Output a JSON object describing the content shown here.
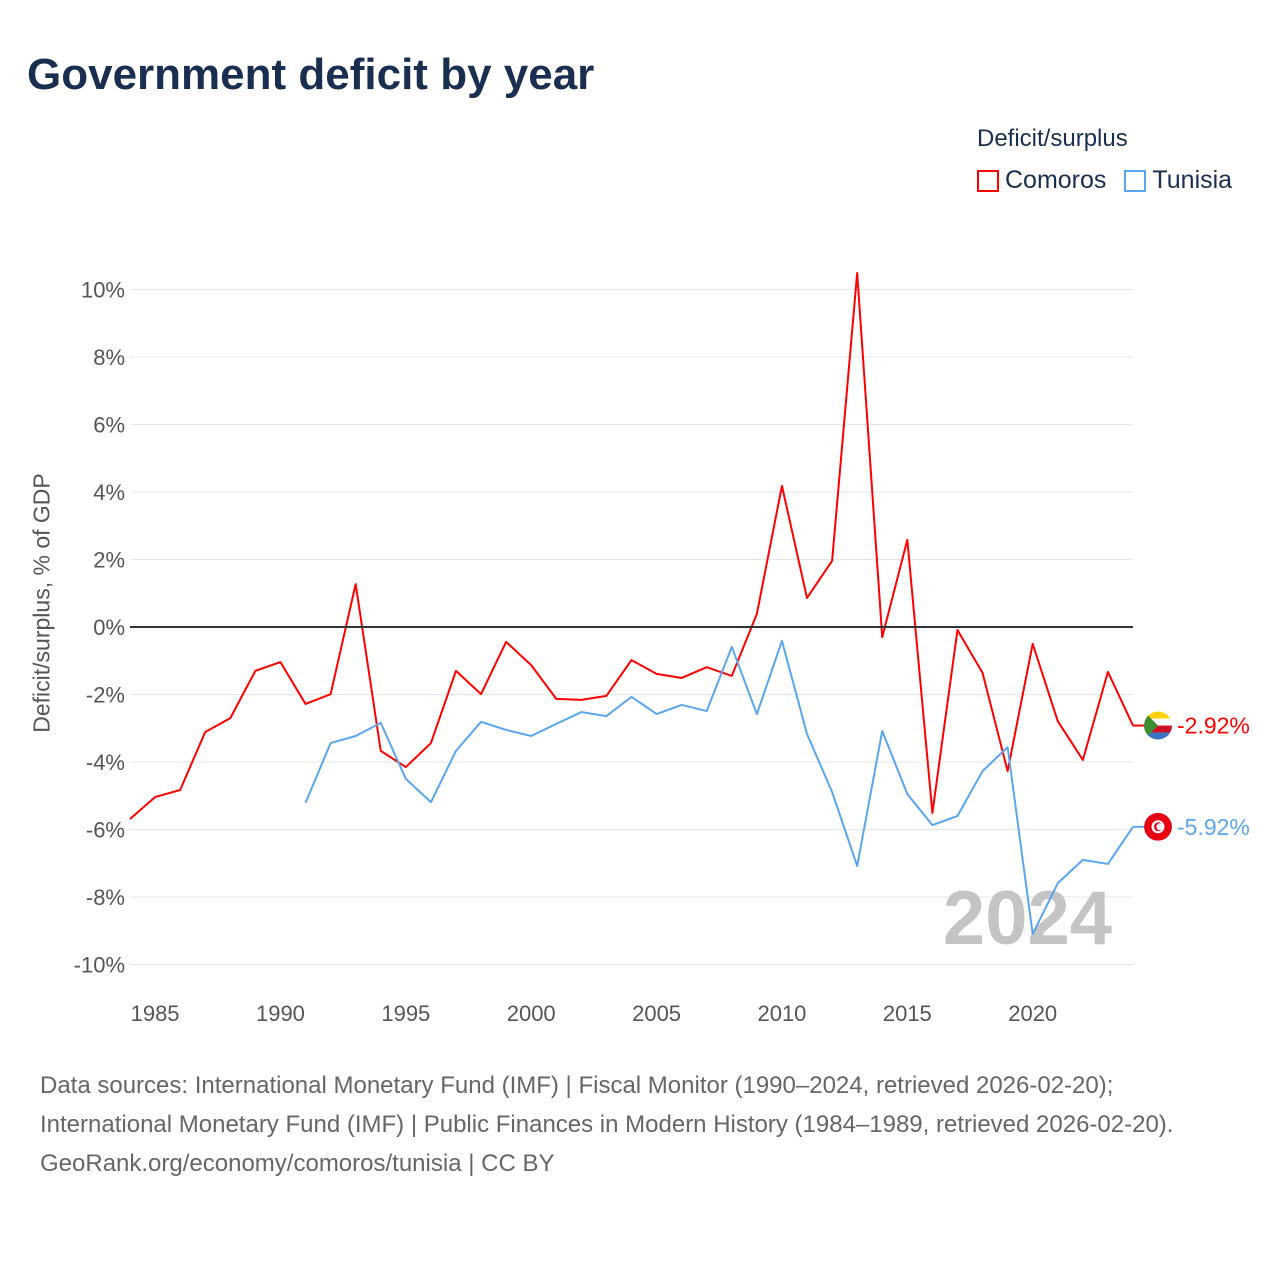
{
  "title": "Government deficit by year",
  "legend": {
    "title": "Deficit/surplus",
    "items": [
      {
        "label": "Comoros",
        "color": "#ff0000"
      },
      {
        "label": "Tunisia",
        "color": "#5aa6ee"
      }
    ]
  },
  "year_watermark": "2024",
  "sources": {
    "line1": "Data sources: International Monetary Fund (IMF) | Fiscal Monitor (1990–2024, retrieved 2026-02-20); International Monetary Fund (IMF) | Public Finances in Modern History (1984–1989, retrieved 2026-02-20).",
    "line2": "GeoRank.org/economy/comoros/tunisia | CC BY"
  },
  "chart_data": {
    "type": "line",
    "title": "Government deficit by year",
    "xlabel": "",
    "ylabel": "Deficit/surplus, % of GDP",
    "xlim": [
      1984,
      2024
    ],
    "ylim": [
      -10.5,
      10.5
    ],
    "x_ticks": [
      1985,
      1990,
      1995,
      2000,
      2005,
      2010,
      2015,
      2020
    ],
    "y_ticks": [
      {
        "v": 10,
        "label": "10%"
      },
      {
        "v": 8,
        "label": "8%"
      },
      {
        "v": 6,
        "label": "6%"
      },
      {
        "v": 4,
        "label": "4%"
      },
      {
        "v": 2,
        "label": "2%"
      },
      {
        "v": 0,
        "label": "0%"
      },
      {
        "v": -2,
        "label": "-2%"
      },
      {
        "v": -4,
        "label": "-4%"
      },
      {
        "v": -6,
        "label": "-6%"
      },
      {
        "v": -8,
        "label": "-8%"
      },
      {
        "v": -10,
        "label": "-10%"
      }
    ],
    "grid": true,
    "legend_position": "top-right",
    "series": [
      {
        "name": "Comoros",
        "color": "#ff0000",
        "end_label": "-2.92%",
        "start_year": 1984,
        "values": [
          -5.69,
          -5.04,
          -4.83,
          -3.11,
          -2.7,
          -1.3,
          -1.04,
          -2.28,
          -1.99,
          1.27,
          -3.67,
          -4.15,
          -3.44,
          -1.3,
          -1.99,
          -0.44,
          -1.13,
          -2.13,
          -2.16,
          -2.04,
          -0.98,
          -1.39,
          -1.51,
          -1.19,
          -1.45,
          0.39,
          4.18,
          0.86,
          1.96,
          10.49,
          -0.3,
          2.58,
          -5.51,
          -0.09,
          -1.36,
          -4.27,
          -0.5,
          -2.79,
          -3.94,
          -1.33,
          -2.92
        ]
      },
      {
        "name": "Tunisia",
        "color": "#5aa6ee",
        "end_label": "-5.92%",
        "start_year": 1991,
        "values": [
          -5.21,
          -3.44,
          -3.23,
          -2.84,
          -4.5,
          -5.19,
          -3.67,
          -2.81,
          -3.05,
          -3.23,
          -2.87,
          -2.52,
          -2.64,
          -2.07,
          -2.58,
          -2.31,
          -2.49,
          -0.59,
          -2.58,
          -0.41,
          -3.17,
          -4.89,
          -7.08,
          -3.08,
          -4.95,
          -5.87,
          -5.6,
          -4.27,
          -3.56,
          -9.1,
          -7.59,
          -6.9,
          -7.02,
          -5.92
        ]
      }
    ]
  }
}
